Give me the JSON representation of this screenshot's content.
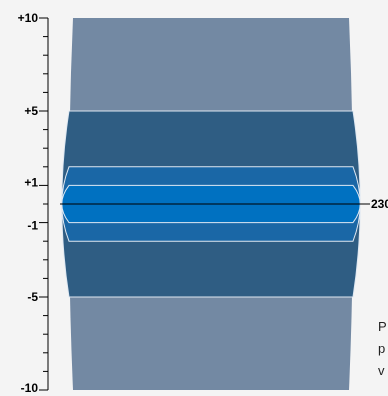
{
  "axis": {
    "ticks": [
      {
        "value": 10,
        "label": "+10"
      },
      {
        "value": 5,
        "label": "+5"
      },
      {
        "value": 1,
        "label": "+1"
      },
      {
        "value": -1,
        "label": "-1"
      },
      {
        "value": -5,
        "label": "-5"
      },
      {
        "value": -10,
        "label": "-10"
      }
    ],
    "min": -10,
    "max": 10,
    "minor_step": 1
  },
  "bands": [
    {
      "name": "outer-band",
      "range": [
        -10,
        10
      ],
      "color": "#7389a3",
      "outlined": false
    },
    {
      "name": "middle-band",
      "range": [
        -5,
        5
      ],
      "color": "#2f5d83",
      "outlined": true
    },
    {
      "name": "inner-band",
      "range": [
        -2,
        2
      ],
      "color": "#1a67a6",
      "outlined": true
    },
    {
      "name": "core-band",
      "range": [
        -1,
        1
      ],
      "color": "#0071c1",
      "outlined": true
    }
  ],
  "center_line_label": "230",
  "side_text": [
    "P",
    "p",
    "v"
  ]
}
